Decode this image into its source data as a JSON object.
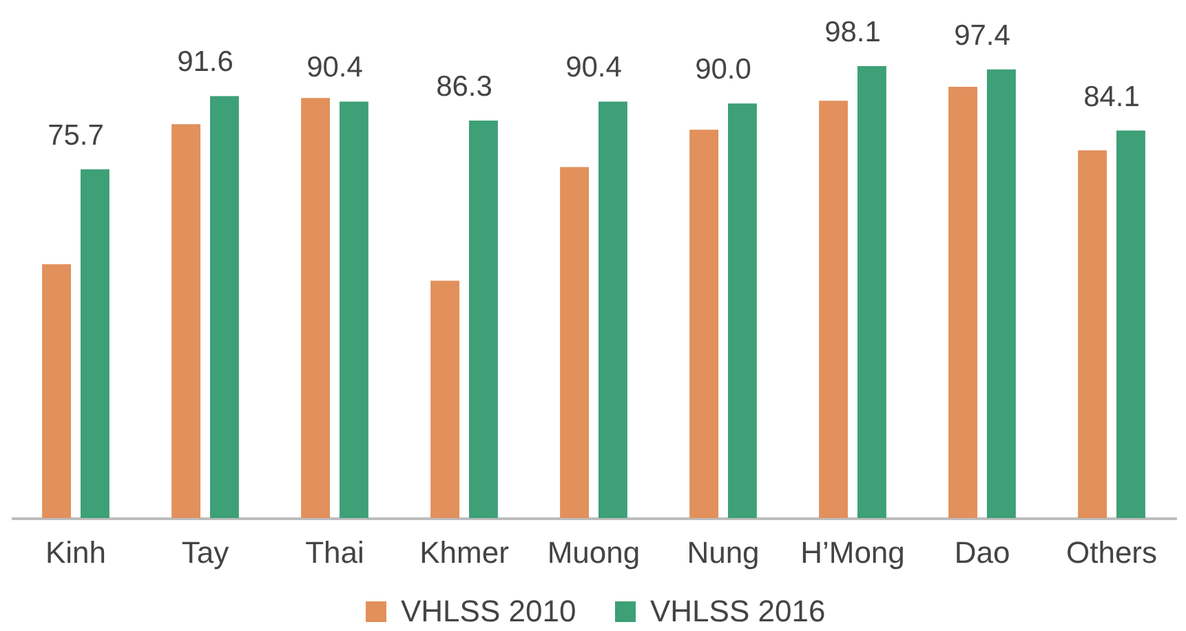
{
  "chart_data": {
    "type": "bar",
    "categories": [
      "Kinh",
      "Tay",
      "Thai",
      "Khmer",
      "Muong",
      "Nung",
      "H’Mong",
      "Dao",
      "Others"
    ],
    "series": [
      {
        "name": "VHLSS 2010",
        "color": "#e2905c",
        "values": [
          55.1,
          85.5,
          91.2,
          51.5,
          76.2,
          84.3,
          90.6,
          93.6,
          79.8
        ]
      },
      {
        "name": "VHLSS 2016",
        "color": "#3da077",
        "values": [
          75.7,
          91.6,
          90.4,
          86.3,
          90.4,
          90.0,
          98.1,
          97.4,
          84.1
        ],
        "value_labels": [
          "75.7",
          "91.6",
          "90.4",
          "86.3",
          "90.4",
          "90.0",
          "98.1",
          "97.4",
          "84.1"
        ]
      }
    ],
    "grid": false,
    "legend": "bottom",
    "tick_labels": "x"
  }
}
